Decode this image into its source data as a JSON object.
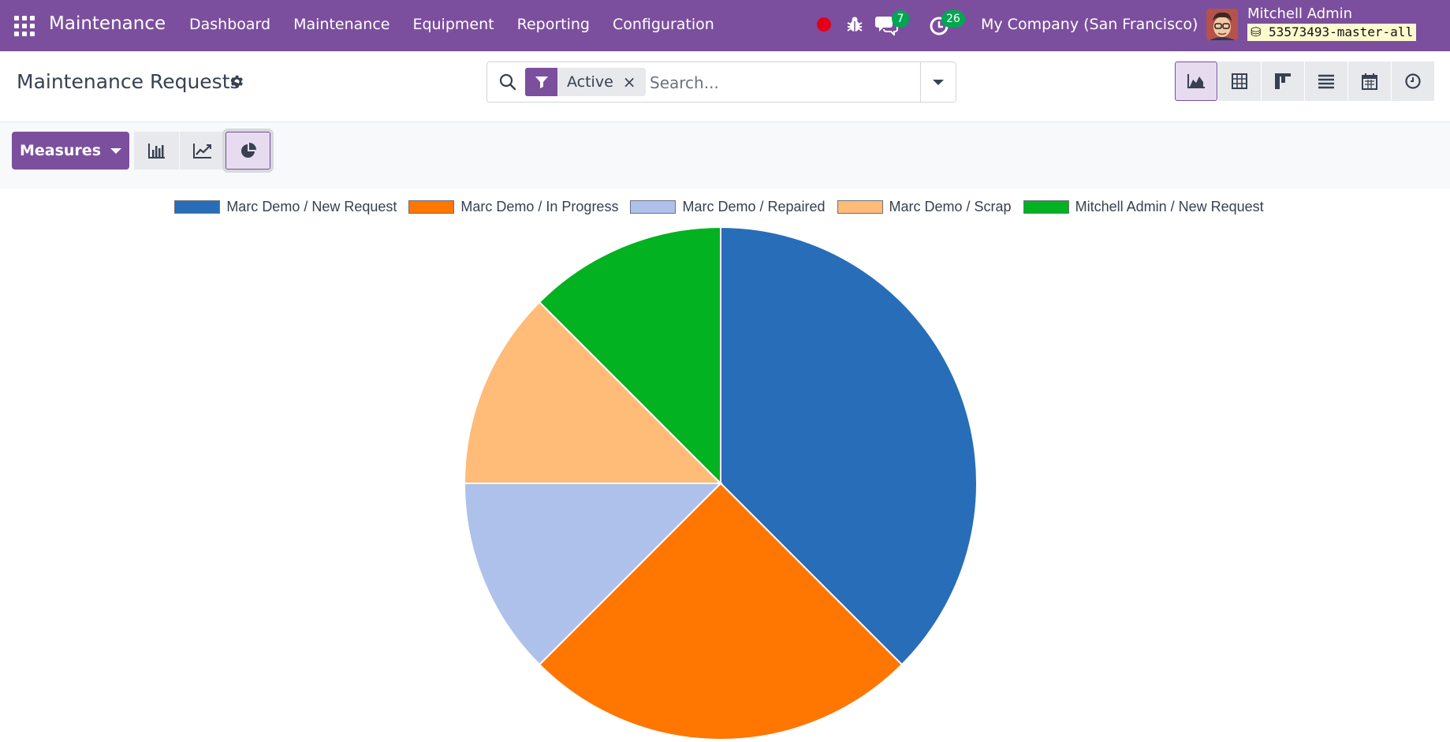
{
  "navbar": {
    "brand": "Maintenance",
    "menu": [
      "Dashboard",
      "Maintenance",
      "Equipment",
      "Reporting",
      "Configuration"
    ],
    "messages_count": "7",
    "activities_count": "26",
    "company": "My Company (San Francisco)",
    "user_name": "Mitchell Admin",
    "database": "53573493-master-all"
  },
  "control_panel": {
    "title": "Maintenance Requests",
    "facet_label": "Active",
    "facet_close": "×",
    "search_placeholder": "Search...",
    "measures_label": "Measures"
  },
  "colors": {
    "brand": "#7b4f9d",
    "badge": "#00a651"
  },
  "chart_data": {
    "type": "pie",
    "series": [
      {
        "name": "Marc Demo / New Request",
        "value": 3,
        "color": "#286db8"
      },
      {
        "name": "Marc Demo / In Progress",
        "value": 2,
        "color": "#ff7600"
      },
      {
        "name": "Marc Demo / Repaired",
        "value": 1,
        "color": "#aec1ea"
      },
      {
        "name": "Marc Demo / Scrap",
        "value": 1,
        "color": "#ffbb78"
      },
      {
        "name": "Mitchell Admin / New Request",
        "value": 1,
        "color": "#02b220"
      }
    ],
    "legend_position": "top"
  }
}
